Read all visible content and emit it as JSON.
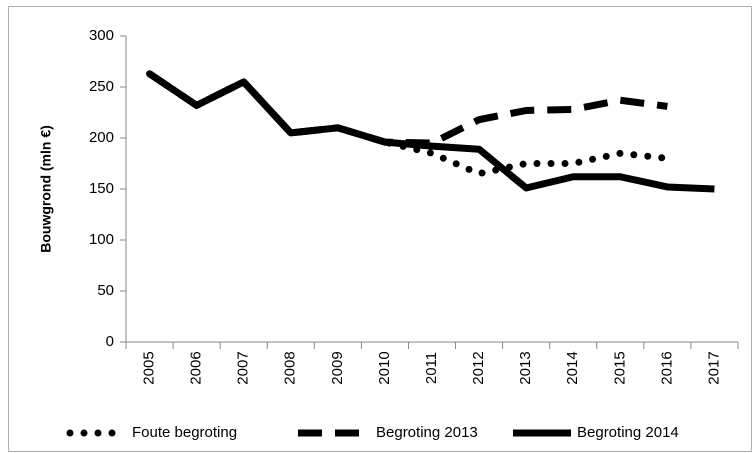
{
  "chart_data": {
    "type": "line",
    "y_label": "Bouwgrond (mln €)",
    "categories": [
      "2005",
      "2006",
      "2007",
      "2008",
      "2009",
      "2010",
      "2011",
      "2012",
      "2013",
      "2014",
      "2015",
      "2016",
      "2017"
    ],
    "series": [
      {
        "name": "Foute begroting",
        "color": "#000000",
        "line_style": "dotted",
        "values": [
          263,
          232,
          255,
          205,
          210,
          196,
          185,
          165,
          175,
          175,
          185,
          180,
          null
        ]
      },
      {
        "name": "Begroting 2013",
        "color": "#000000",
        "line_style": "dashed",
        "values": [
          263,
          232,
          255,
          205,
          210,
          196,
          195,
          218,
          227,
          228,
          237,
          231,
          null
        ]
      },
      {
        "name": "Begroting 2014",
        "color": "#000000",
        "line_style": "solid",
        "values": [
          263,
          232,
          255,
          205,
          210,
          196,
          192,
          189,
          151,
          162,
          162,
          152,
          150
        ]
      }
    ],
    "ylim": [
      0,
      300
    ],
    "yticks": [
      0,
      50,
      100,
      150,
      200,
      250,
      300
    ],
    "grid": false
  }
}
